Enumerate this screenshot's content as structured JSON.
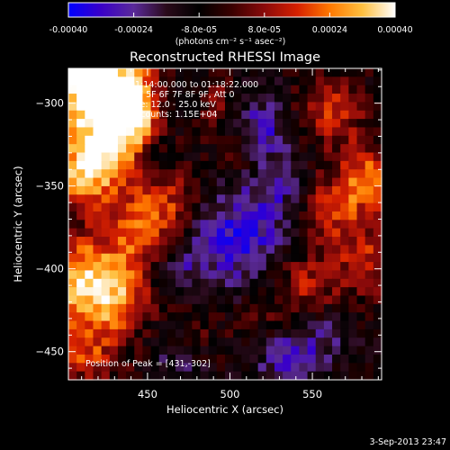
{
  "chart_data": {
    "type": "heatmap",
    "title": "Reconstructed RHESSI Image",
    "xlabel": "Heliocentric X (arcsec)",
    "ylabel": "Heliocentric Y (arcsec)",
    "xlim": [
      402,
      592
    ],
    "ylim": [
      -467,
      -279
    ],
    "x_ticks": [
      450,
      500,
      550
    ],
    "x_tick_labels": [
      "450",
      "500",
      "550"
    ],
    "y_ticks": [
      -300,
      -350,
      -400,
      -450
    ],
    "y_tick_labels": [
      "−300",
      "−350",
      "−400",
      "−450"
    ],
    "colorbar": {
      "range": [
        -0.0004,
        0.0004
      ],
      "tick_labels": [
        "-0.00040",
        "-0.00024",
        "-8.0e-05",
        "8.0e-05",
        "0.00024",
        "0.00040"
      ],
      "tick_fractions": [
        0.0,
        0.2,
        0.4,
        0.6,
        0.8,
        1.0
      ],
      "unit_text": "(photons cm⁻² s⁻¹ asec⁻²)",
      "colormap": [
        "#0000ff",
        "#3a00c8",
        "#5a2a9a",
        "#2a0a1a",
        "#000000",
        "#3a0000",
        "#8a0a0a",
        "#d62000",
        "#ff7800",
        "#ffc040",
        "#ffffff"
      ]
    },
    "annotations": [
      "4-Sep-2013 01:14:00.000 to 01:18:22.000",
      "Detectors: 3F 5F 6F 7F 8F 9F, Att 0",
      "Energy Range: 12.0 - 25.0 keV",
      "Clean   Total counts: 1.15E+04"
    ],
    "peak_label": "Position of Peak = [431,-302]",
    "peak": [
      431,
      -302
    ],
    "timestamp": "3-Sep-2013 23:47",
    "map_grid": [
      38,
      37
    ],
    "sources": [
      {
        "x": 412,
        "y": -285,
        "sigma": 24,
        "amp": 1.25
      },
      {
        "x": 438,
        "y": -303,
        "sigma": 14,
        "amp": 1.1
      },
      {
        "x": 428,
        "y": -330,
        "sigma": 17,
        "amp": 0.75
      },
      {
        "x": 410,
        "y": -345,
        "sigma": 14,
        "amp": 0.7
      },
      {
        "x": 460,
        "y": -360,
        "sigma": 15,
        "amp": 0.6
      },
      {
        "x": 442,
        "y": -382,
        "sigma": 14,
        "amp": 0.55
      },
      {
        "x": 408,
        "y": -405,
        "sigma": 18,
        "amp": 0.95
      },
      {
        "x": 432,
        "y": -418,
        "sigma": 14,
        "amp": 0.65
      },
      {
        "x": 412,
        "y": -450,
        "sigma": 16,
        "amp": 0.6
      },
      {
        "x": 560,
        "y": -305,
        "sigma": 15,
        "amp": 0.55
      },
      {
        "x": 585,
        "y": -345,
        "sigma": 14,
        "amp": 0.8
      },
      {
        "x": 560,
        "y": -365,
        "sigma": 14,
        "amp": 0.55
      },
      {
        "x": 545,
        "y": -410,
        "sigma": 14,
        "amp": 0.5
      },
      {
        "x": 585,
        "y": -395,
        "sigma": 16,
        "amp": 0.55
      },
      {
        "x": 490,
        "y": -300,
        "sigma": 11,
        "amp": 0.35
      },
      {
        "x": 505,
        "y": -330,
        "sigma": 12,
        "amp": 0.28
      },
      {
        "x": 520,
        "y": -430,
        "sigma": 12,
        "amp": 0.22
      },
      {
        "x": 480,
        "y": -440,
        "sigma": 12,
        "amp": 0.25
      }
    ],
    "sinks": [
      {
        "x": 520,
        "y": -315,
        "sigma": 14,
        "amp": 0.55
      },
      {
        "x": 470,
        "y": -300,
        "sigma": 10,
        "amp": 0.35
      },
      {
        "x": 505,
        "y": -380,
        "sigma": 22,
        "amp": 0.6
      },
      {
        "x": 530,
        "y": -350,
        "sigma": 12,
        "amp": 0.35
      },
      {
        "x": 535,
        "y": -455,
        "sigma": 14,
        "amp": 0.45
      },
      {
        "x": 470,
        "y": -455,
        "sigma": 12,
        "amp": 0.3
      },
      {
        "x": 455,
        "y": -335,
        "sigma": 9,
        "amp": 0.35
      },
      {
        "x": 470,
        "y": -400,
        "sigma": 10,
        "amp": 0.3
      },
      {
        "x": 555,
        "y": -440,
        "sigma": 12,
        "amp": 0.3
      }
    ],
    "baseline": -0.2,
    "noise_amp": 0.2,
    "grid": false
  }
}
